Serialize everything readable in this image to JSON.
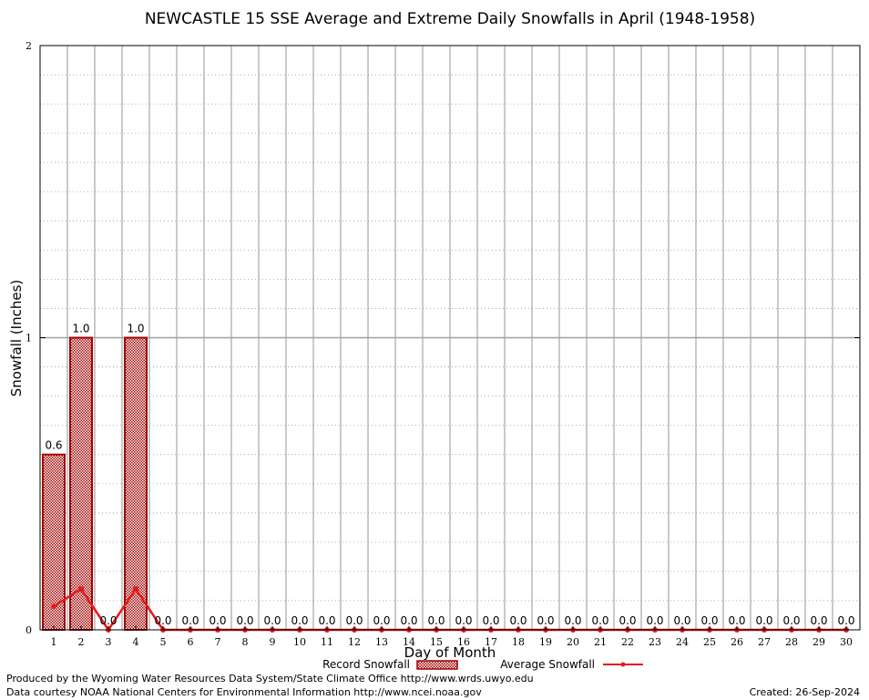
{
  "chart_data": {
    "type": "bar",
    "title": "NEWCASTLE 15 SSE Average and Extreme Daily Snowfalls in April (1948-1958)",
    "xlabel": "Day of Month",
    "ylabel": "Snowfall (Inches)",
    "ylim": [
      0,
      2
    ],
    "yticks": [
      "0",
      "1",
      "2"
    ],
    "categories": [
      "1",
      "2",
      "3",
      "4",
      "5",
      "6",
      "7",
      "8",
      "9",
      "10",
      "11",
      "12",
      "13",
      "14",
      "15",
      "16",
      "17",
      "18",
      "19",
      "20",
      "21",
      "22",
      "23",
      "24",
      "25",
      "26",
      "27",
      "28",
      "29",
      "30"
    ],
    "series": [
      {
        "name": "Record Snowfall",
        "type": "bar",
        "color": "#a00000",
        "values": [
          0.6,
          1.0,
          0.0,
          1.0,
          0.0,
          0.0,
          0.0,
          0.0,
          0.0,
          0.0,
          0.0,
          0.0,
          0.0,
          0.0,
          0.0,
          0.0,
          0.0,
          0.0,
          0.0,
          0.0,
          0.0,
          0.0,
          0.0,
          0.0,
          0.0,
          0.0,
          0.0,
          0.0,
          0.0,
          0.0
        ],
        "labels": [
          "0.6",
          "1.0",
          "0.0",
          "1.0",
          "0.0",
          "0.0",
          "0.0",
          "0.0",
          "0.0",
          "0.0",
          "0.0",
          "0.0",
          "0.0",
          "0.0",
          "0.0",
          "0.0",
          "0.0",
          "0.0",
          "0.0",
          "0.0",
          "0.0",
          "0.0",
          "0.0",
          "0.0",
          "0.0",
          "0.0",
          "0.0",
          "0.0",
          "0.0",
          "0.0"
        ]
      },
      {
        "name": "Average Snowfall",
        "type": "line",
        "color": "#e8191c",
        "values": [
          0.08,
          0.14,
          0.0,
          0.14,
          0.0,
          0.0,
          0.0,
          0.0,
          0.0,
          0.0,
          0.0,
          0.0,
          0.0,
          0.0,
          0.0,
          0.0,
          0.0,
          0.0,
          0.0,
          0.0,
          0.0,
          0.0,
          0.0,
          0.0,
          0.0,
          0.0,
          0.0,
          0.0,
          0.0,
          0.0
        ]
      }
    ],
    "grid": true,
    "legend": "bottom-center"
  },
  "footer": {
    "line1": "Produced by the Wyoming Water Resources Data System/State Climate Office http://www.wrds.uwyo.edu",
    "line2": "Data courtesy NOAA National Centers for Environmental Information http://www.ncei.noaa.gov",
    "created": "Created:  26-Sep-2024"
  }
}
